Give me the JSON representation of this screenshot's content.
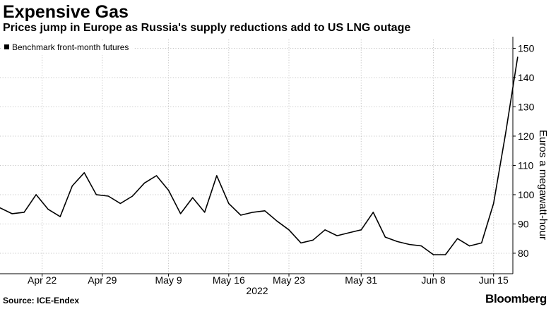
{
  "chart_data": {
    "type": "line",
    "title": "Expensive Gas",
    "subtitle": "Prices jump in Europe as Russia's supply reductions add to US LNG outage",
    "ylabel": "Euros a megawatt-hour",
    "xlabel": "",
    "year_label": "2022",
    "ylim": [
      73,
      153
    ],
    "yticks": [
      80,
      90,
      100,
      110,
      120,
      130,
      140,
      150
    ],
    "grid": true,
    "legend": {
      "position": "top-left",
      "entries": [
        "Benchmark front-month futures"
      ]
    },
    "x_tick_labels": [
      "Apr 22",
      "Apr 29",
      "May 9",
      "May 16",
      "May 23",
      "May 31",
      "Jun 8",
      "Jun 15"
    ],
    "x_tick_index": [
      3.5,
      8.5,
      14,
      19,
      24,
      30,
      36,
      41
    ],
    "x_range": [
      0,
      42.6
    ],
    "series": [
      {
        "name": "Benchmark front-month futures",
        "values": [
          95.5,
          93.5,
          94,
          100,
          95,
          92.5,
          103,
          107.5,
          100,
          99.5,
          97,
          99.5,
          104,
          106.5,
          101.5,
          93.5,
          99,
          94,
          106.5,
          97,
          93,
          94,
          94.5,
          91,
          88,
          83.5,
          84.5,
          88,
          86,
          87,
          88,
          94,
          85.5,
          84,
          83,
          82.5,
          79.5,
          79.5,
          85,
          82.5,
          83.5,
          97,
          121,
          147
        ]
      }
    ]
  },
  "footer": {
    "source": "Source: ICE-Endex",
    "brand": "Bloomberg"
  },
  "colors": {
    "line": "#000000",
    "grid": "#c4c4c4",
    "axis": "#000000"
  }
}
